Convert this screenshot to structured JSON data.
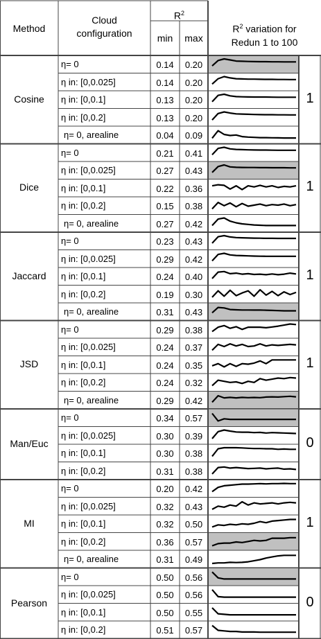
{
  "header": {
    "method": "Method",
    "cloud_line1": "Cloud",
    "cloud_line2": "configuration",
    "r2": "R",
    "r2_sup": "2",
    "min": "min",
    "max": "max",
    "variation_line1_a": "R",
    "variation_line1_sup": "2",
    "variation_line1_b": " variation for",
    "variation_line2": "Redun 1 to 100"
  },
  "colors": {
    "grid": "#444444",
    "shade": "#c0c0c0",
    "line": "#000000"
  },
  "groups": [
    {
      "method": "Cosine",
      "flag": "1",
      "rows": [
        {
          "config": "η= 0",
          "min": "0.14",
          "max": "0.20",
          "shaded": true,
          "series": [
            0.35,
            0.85,
            1.0,
            0.9,
            0.8,
            0.78,
            0.76,
            0.75,
            0.74,
            0.74,
            0.73,
            0.73,
            0.72,
            0.72,
            0.72
          ]
        },
        {
          "config": "η in: [0,0.025]",
          "min": "0.14",
          "max": "0.20",
          "shaded": false,
          "series": [
            0.3,
            0.8,
            1.0,
            0.88,
            0.8,
            0.78,
            0.76,
            0.76,
            0.75,
            0.74,
            0.74,
            0.73,
            0.73,
            0.72,
            0.72
          ]
        },
        {
          "config": "η in: [0,0.1]",
          "min": "0.13",
          "max": "0.20",
          "shaded": false,
          "series": [
            0.3,
            0.9,
            1.0,
            0.85,
            0.78,
            0.76,
            0.75,
            0.74,
            0.74,
            0.74,
            0.73,
            0.72,
            0.72,
            0.72,
            0.72
          ]
        },
        {
          "config": "η in: [0,0.2]",
          "min": "0.13",
          "max": "0.20",
          "shaded": false,
          "series": [
            0.25,
            0.85,
            1.0,
            0.9,
            0.82,
            0.8,
            0.78,
            0.76,
            0.75,
            0.74,
            0.74,
            0.73,
            0.73,
            0.72,
            0.72
          ]
        },
        {
          "config": "η= 0, arealine",
          "min": "0.04",
          "max": "0.09",
          "shaded": false,
          "series": [
            0.2,
            0.9,
            0.55,
            0.45,
            0.5,
            0.35,
            0.3,
            0.28,
            0.25,
            0.25,
            0.24,
            0.23,
            0.22,
            0.22,
            0.22
          ]
        }
      ]
    },
    {
      "method": "Dice",
      "flag": "1",
      "rows": [
        {
          "config": "η= 0",
          "min": "0.21",
          "max": "0.41",
          "shaded": false,
          "series": [
            0.3,
            0.9,
            1.0,
            0.85,
            0.8,
            0.78,
            0.76,
            0.75,
            0.74,
            0.74,
            0.73,
            0.72,
            0.72,
            0.72,
            0.72
          ]
        },
        {
          "config": "η in: [0,0.025]",
          "min": "0.27",
          "max": "0.43",
          "shaded": true,
          "series": [
            0.3,
            0.85,
            1.0,
            0.82,
            0.78,
            0.77,
            0.76,
            0.76,
            0.75,
            0.75,
            0.74,
            0.74,
            0.74,
            0.73,
            0.73
          ]
        },
        {
          "config": "η in: [0,0.1]",
          "min": "0.22",
          "max": "0.36",
          "shaded": false,
          "series": [
            0.7,
            0.8,
            0.75,
            0.4,
            0.7,
            0.35,
            0.7,
            0.6,
            0.75,
            0.6,
            0.7,
            0.55,
            0.65,
            0.6,
            0.7
          ]
        },
        {
          "config": "η in: [0,0.2]",
          "min": "0.15",
          "max": "0.38",
          "shaded": false,
          "series": [
            0.2,
            0.8,
            0.5,
            0.75,
            0.4,
            0.7,
            0.45,
            0.55,
            0.65,
            0.5,
            0.6,
            0.55,
            0.65,
            0.5,
            0.6
          ]
        },
        {
          "config": "η= 0, arealine",
          "min": "0.27",
          "max": "0.42",
          "shaded": false,
          "series": [
            0.3,
            0.9,
            1.0,
            0.7,
            0.55,
            0.45,
            0.4,
            0.35,
            0.32,
            0.3,
            0.3,
            0.3,
            0.3,
            0.3,
            0.3
          ]
        }
      ]
    },
    {
      "method": "Jaccard",
      "flag": "1",
      "rows": [
        {
          "config": "η= 0",
          "min": "0.23",
          "max": "0.43",
          "shaded": false,
          "series": [
            0.3,
            0.9,
            1.0,
            0.88,
            0.82,
            0.8,
            0.78,
            0.77,
            0.76,
            0.75,
            0.75,
            0.74,
            0.74,
            0.74,
            0.74
          ]
        },
        {
          "config": "η in: [0,0.025]",
          "min": "0.29",
          "max": "0.42",
          "shaded": false,
          "series": [
            0.3,
            0.9,
            1.0,
            0.85,
            0.8,
            0.78,
            0.76,
            0.74,
            0.73,
            0.72,
            0.72,
            0.72,
            0.72,
            0.72,
            0.72
          ]
        },
        {
          "config": "η in: [0,0.1]",
          "min": "0.24",
          "max": "0.40",
          "shaded": false,
          "series": [
            0.3,
            0.9,
            0.95,
            0.75,
            0.8,
            0.7,
            0.75,
            0.68,
            0.7,
            0.65,
            0.72,
            0.65,
            0.7,
            0.8,
            0.72
          ]
        },
        {
          "config": "η in: [0,0.2]",
          "min": "0.19",
          "max": "0.30",
          "shaded": false,
          "series": [
            0.2,
            0.8,
            0.3,
            0.85,
            0.35,
            0.6,
            0.8,
            0.3,
            0.9,
            0.4,
            0.75,
            0.35,
            0.7,
            0.45,
            0.65
          ]
        },
        {
          "config": "η= 0, arealine",
          "min": "0.31",
          "max": "0.43",
          "shaded": true,
          "series": [
            0.4,
            0.9,
            0.85,
            0.7,
            0.68,
            0.66,
            0.66,
            0.65,
            0.65,
            0.64,
            0.62,
            0.6,
            0.58,
            0.58,
            0.58
          ]
        }
      ]
    },
    {
      "method": "JSD",
      "flag": "1",
      "rows": [
        {
          "config": "η= 0",
          "min": "0.29",
          "max": "0.38",
          "shaded": false,
          "series": [
            0.3,
            0.7,
            0.85,
            0.6,
            0.75,
            0.5,
            0.7,
            0.7,
            0.7,
            0.65,
            0.72,
            0.8,
            0.9,
            1.0,
            0.95
          ]
        },
        {
          "config": "η in: [0,0.025]",
          "min": "0.24",
          "max": "0.37",
          "shaded": false,
          "series": [
            0.2,
            0.75,
            0.55,
            0.8,
            0.6,
            0.75,
            0.55,
            0.6,
            0.8,
            0.6,
            0.7,
            0.65,
            0.7,
            0.75,
            0.7
          ]
        },
        {
          "config": "η in: [0,0.1]",
          "min": "0.24",
          "max": "0.35",
          "shaded": false,
          "series": [
            0.4,
            0.6,
            0.3,
            0.6,
            0.35,
            0.6,
            0.55,
            0.65,
            0.85,
            0.6,
            0.95,
            0.95,
            0.95,
            0.95,
            0.95
          ]
        },
        {
          "config": "η in: [0,0.2]",
          "min": "0.24",
          "max": "0.32",
          "shaded": false,
          "series": [
            0.2,
            0.7,
            0.6,
            0.5,
            0.55,
            0.4,
            0.6,
            0.5,
            0.85,
            0.7,
            0.8,
            0.9,
            0.85,
            0.95,
            0.9
          ]
        },
        {
          "config": "η= 0, arealine",
          "min": "0.29",
          "max": "0.42",
          "shaded": true,
          "series": [
            0.3,
            0.9,
            0.7,
            0.75,
            0.7,
            0.75,
            0.72,
            0.74,
            0.72,
            0.78,
            0.8,
            0.78,
            0.82,
            0.85,
            0.8
          ]
        }
      ]
    },
    {
      "method": "Man/Euc",
      "flag": "0",
      "rows": [
        {
          "config": "η= 0",
          "min": "0.34",
          "max": "0.57",
          "shaded": true,
          "series": [
            0.9,
            0.2,
            0.4,
            0.35,
            0.35,
            0.35,
            0.35,
            0.35,
            0.35,
            0.35,
            0.35,
            0.35,
            0.35,
            0.35,
            0.35
          ]
        },
        {
          "config": "η in: [0,0.025]",
          "min": "0.30",
          "max": "0.39",
          "shaded": false,
          "series": [
            0.2,
            0.85,
            1.0,
            0.9,
            0.82,
            0.8,
            0.8,
            0.76,
            0.78,
            0.72,
            0.76,
            0.74,
            0.72,
            0.7,
            0.68
          ]
        },
        {
          "config": "η in: [0,0.1]",
          "min": "0.30",
          "max": "0.38",
          "shaded": false,
          "series": [
            0.2,
            0.9,
            1.0,
            1.0,
            1.0,
            0.98,
            0.95,
            0.92,
            0.92,
            0.9,
            0.9,
            0.85,
            0.88,
            0.85,
            0.85
          ]
        },
        {
          "config": "η in: [0,0.2]",
          "min": "0.31",
          "max": "0.38",
          "shaded": false,
          "series": [
            0.2,
            0.8,
            0.85,
            0.75,
            0.8,
            0.75,
            0.7,
            0.72,
            0.75,
            0.68,
            0.72,
            0.75,
            0.65,
            0.68,
            0.62
          ]
        }
      ]
    },
    {
      "method": "MI",
      "flag": "1",
      "rows": [
        {
          "config": "η= 0",
          "min": "0.20",
          "max": "0.42",
          "shaded": false,
          "series": [
            0.2,
            0.6,
            0.75,
            0.8,
            0.85,
            0.9,
            0.9,
            0.92,
            0.95,
            0.92,
            0.95,
            0.95,
            0.97,
            0.95,
            0.95
          ]
        },
        {
          "config": "η in: [0,0.025]",
          "min": "0.32",
          "max": "0.43",
          "shaded": false,
          "series": [
            0.2,
            0.5,
            0.4,
            0.6,
            0.5,
            0.9,
            0.6,
            0.8,
            0.7,
            0.75,
            0.8,
            0.7,
            0.8,
            0.85,
            0.8
          ]
        },
        {
          "config": "η in: [0,0.1]",
          "min": "0.32",
          "max": "0.50",
          "shaded": false,
          "series": [
            0.2,
            0.4,
            0.35,
            0.45,
            0.4,
            0.5,
            0.45,
            0.55,
            0.7,
            0.6,
            0.75,
            0.8,
            0.85,
            0.9,
            0.9
          ]
        },
        {
          "config": "η in: [0,0.2]",
          "min": "0.36",
          "max": "0.57",
          "shaded": true,
          "series": [
            0.1,
            0.3,
            0.35,
            0.35,
            0.45,
            0.4,
            0.5,
            0.6,
            0.55,
            0.6,
            0.8,
            0.8,
            0.8,
            0.85,
            0.85
          ]
        },
        {
          "config": "η= 0, arealine",
          "min": "0.31",
          "max": "0.49",
          "shaded": false,
          "series": [
            0.1,
            0.15,
            0.15,
            0.2,
            0.18,
            0.2,
            0.25,
            0.35,
            0.45,
            0.6,
            0.7,
            0.8,
            0.85,
            0.85,
            0.85
          ]
        }
      ]
    },
    {
      "method": "Pearson",
      "flag": "0",
      "rows": [
        {
          "config": "η= 0",
          "min": "0.50",
          "max": "0.56",
          "shaded": true,
          "series": [
            0.95,
            0.4,
            0.3,
            0.3,
            0.3,
            0.3,
            0.3,
            0.3,
            0.3,
            0.3,
            0.3,
            0.3,
            0.3,
            0.3,
            0.3
          ]
        },
        {
          "config": "η in: [0,0.025]",
          "min": "0.50",
          "max": "0.56",
          "shaded": false,
          "series": [
            0.95,
            0.3,
            0.25,
            0.25,
            0.25,
            0.25,
            0.25,
            0.25,
            0.25,
            0.25,
            0.25,
            0.25,
            0.25,
            0.25,
            0.25
          ]
        },
        {
          "config": "η in: [0,0.1]",
          "min": "0.50",
          "max": "0.55",
          "shaded": false,
          "series": [
            0.9,
            0.35,
            0.3,
            0.25,
            0.25,
            0.25,
            0.25,
            0.25,
            0.25,
            0.25,
            0.25,
            0.25,
            0.25,
            0.25,
            0.25
          ]
        },
        {
          "config": "η in: [0,0.2]",
          "min": "0.51",
          "max": "0.57",
          "shaded": false,
          "series": [
            0.9,
            0.45,
            0.4,
            0.35,
            0.35,
            0.3,
            0.3,
            0.3,
            0.28,
            0.28,
            0.28,
            0.28,
            0.28,
            0.28,
            0.28
          ]
        }
      ]
    }
  ]
}
